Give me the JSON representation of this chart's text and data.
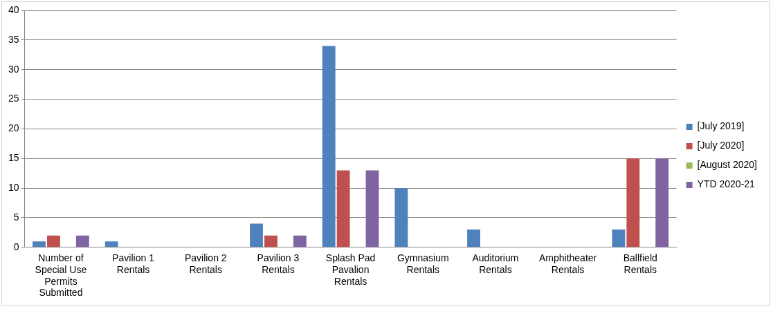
{
  "chart_data": {
    "type": "bar",
    "categories": [
      "Number of Special Use Permits Submitted",
      "Pavilion 1 Rentals",
      "Pavilion 2 Rentals",
      "Pavilion 3 Rentals",
      "Splash Pad Pavalion Rentals",
      "Gymnasium Rentals",
      "Auditorium Rentals",
      "Amphitheater Rentals",
      "Ballfield Rentals"
    ],
    "series": [
      {
        "name": "[July 2019]",
        "color": "#4f81bd",
        "values": [
          1,
          1,
          0,
          4,
          34,
          10,
          3,
          0,
          3
        ]
      },
      {
        "name": "[July 2020]",
        "color": "#c0504d",
        "values": [
          2,
          0,
          0,
          2,
          13,
          0,
          0,
          0,
          15
        ]
      },
      {
        "name": "[August 2020]",
        "color": "#9bbb59",
        "values": [
          0,
          0,
          0,
          0,
          0,
          0,
          0,
          0,
          0
        ]
      },
      {
        "name": "YTD 2020-21",
        "color": "#8064a2",
        "values": [
          2,
          0,
          0,
          2,
          13,
          0,
          0,
          0,
          15
        ]
      }
    ],
    "ylim": [
      0,
      40
    ],
    "yticks": [
      0,
      5,
      10,
      15,
      20,
      25,
      30,
      35,
      40
    ],
    "grid": "y",
    "legend": "right"
  }
}
